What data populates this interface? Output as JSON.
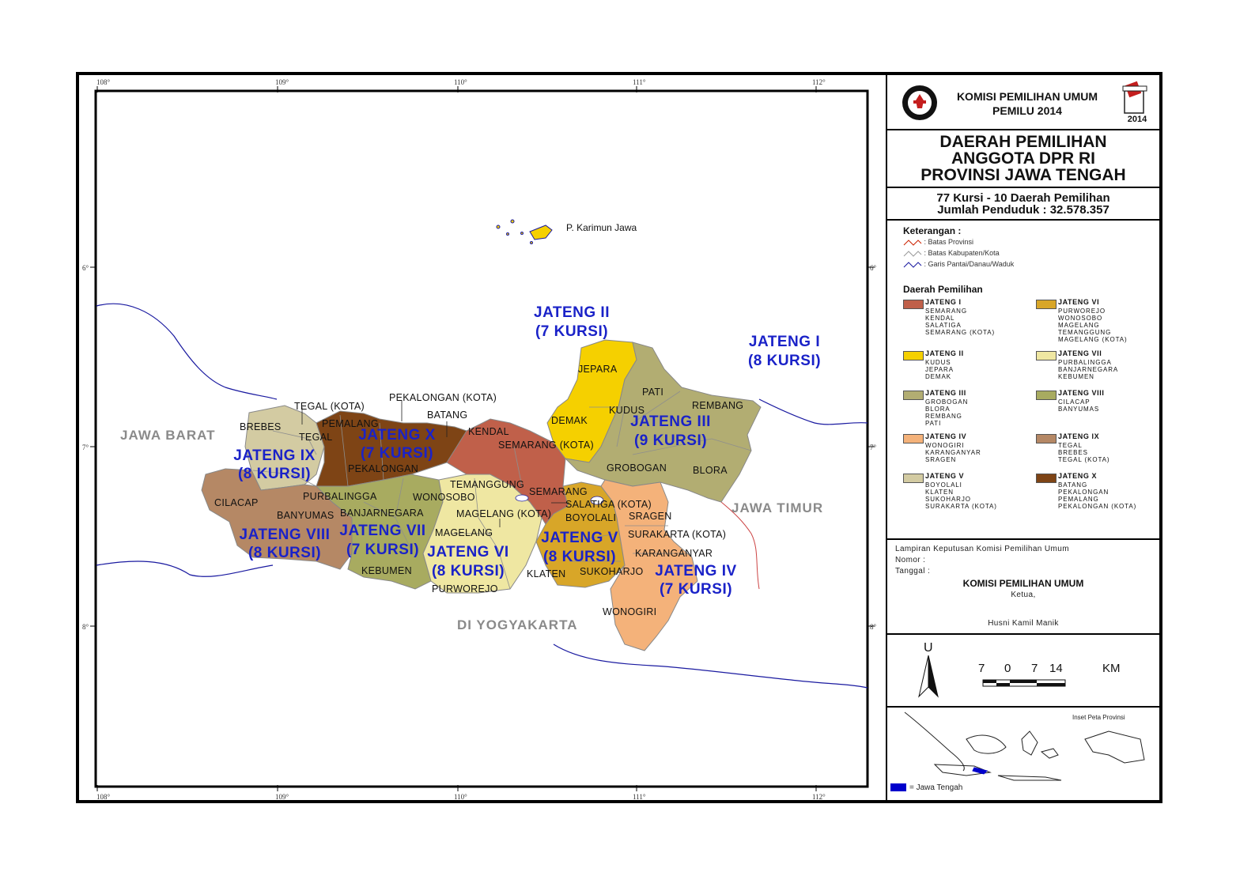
{
  "header": {
    "org": "KOMISI PEMILIHAN UMUM",
    "event": "PEMILU 2014",
    "logo_text": "KOMISI PEMILIHAN UMUM",
    "year_badge": "2014"
  },
  "title": {
    "line1": "DAERAH PEMILIHAN",
    "line2": "ANGGOTA DPR RI",
    "line3": "PROVINSI JAWA TENGAH"
  },
  "summary": {
    "line1": "77 Kursi - 10 Daerah Pemilihan",
    "line2": "Jumlah Penduduk : 32.578.357"
  },
  "keterangan": {
    "title": "Keterangan :",
    "items": [
      ": Batas Provinsi",
      ": Batas Kabupaten/Kota",
      ": Garis Pantai/Danau/Waduk"
    ],
    "colors": [
      "#cc2200",
      "#999999",
      "#1a1aa0"
    ]
  },
  "daerah_pemilihan": {
    "title": "Daerah Pemilihan",
    "items": [
      {
        "name": "JATENG I",
        "color": "#c0604a",
        "members": [
          "SEMARANG",
          "KENDAL",
          "SALATIGA",
          "SEMARANG (KOTA)"
        ]
      },
      {
        "name": "JATENG II",
        "color": "#f5d000",
        "members": [
          "KUDUS",
          "JEPARA",
          "DEMAK"
        ]
      },
      {
        "name": "JATENG III",
        "color": "#b2ad72",
        "members": [
          "GROBOGAN",
          "BLORA",
          "REMBANG",
          "PATI"
        ]
      },
      {
        "name": "JATENG IV",
        "color": "#f4b27a",
        "members": [
          "WONOGIRI",
          "KARANGANYAR",
          "SRAGEN"
        ]
      },
      {
        "name": "JATENG V",
        "color": "#d3cba2",
        "members": [
          "BOYOLALI",
          "KLATEN",
          "SUKOHARJO",
          "SURAKARTA (KOTA)"
        ]
      },
      {
        "name": "JATENG VI",
        "color": "#d8a628",
        "members": [
          "PURWOREJO",
          "WONOSOBO",
          "MAGELANG",
          "TEMANGGUNG",
          "MAGELANG (KOTA)"
        ]
      },
      {
        "name": "JATENG VII",
        "color": "#efe7a2",
        "members": [
          "PURBALINGGA",
          "BANJARNEGARA",
          "KEBUMEN"
        ]
      },
      {
        "name": "JATENG VIII",
        "color": "#a8ab60",
        "members": [
          "CILACAP",
          "BANYUMAS"
        ]
      },
      {
        "name": "JATENG IX",
        "color": "#b58865",
        "members": [
          "TEGAL",
          "BREBES",
          "TEGAL (KOTA)"
        ]
      },
      {
        "name": "JATENG X",
        "color": "#7e4415",
        "members": [
          "BATANG",
          "PEKALONGAN",
          "PEMALANG",
          "PEKALONGAN (KOTA)"
        ]
      }
    ]
  },
  "approval": {
    "lampiran": "Lampiran Keputusan Komisi Pemilihan Umum",
    "nomor": "Nomor     :",
    "tanggal": "Tanggal :",
    "org": "KOMISI PEMILIHAN UMUM",
    "role": "Ketua,",
    "name": "Husni Kamil Manik"
  },
  "scale": {
    "north": "U",
    "ticks": [
      "7",
      "0",
      "7",
      "14"
    ],
    "unit": "KM"
  },
  "inset": {
    "label": "Inset Peta Provinsi",
    "legend": "= Jawa Tengah",
    "highlight_color": "#0000cc"
  },
  "map": {
    "lon_ticks": [
      "108°",
      "109°",
      "110°",
      "111°",
      "112°"
    ],
    "lat_ticks": [
      "6°",
      "7°",
      "8°"
    ],
    "region_labels": {
      "jawa_barat": "JAWA BARAT",
      "jawa_timur": "JAWA TIMUR",
      "di_yogyakarta": "DI YOGYAKARTA",
      "karimun": "P. Karimun Jawa"
    },
    "dapil_labels": [
      {
        "line1": "JATENG I",
        "line2": "(8 KURSI)"
      },
      {
        "line1": "JATENG II",
        "line2": "(7 KURSI)"
      },
      {
        "line1": "JATENG III",
        "line2": "(9 KURSI)"
      },
      {
        "line1": "JATENG IV",
        "line2": "(7 KURSI)"
      },
      {
        "line1": "JATENG V",
        "line2": "(8 KURSI)"
      },
      {
        "line1": "JATENG VI",
        "line2": "(8 KURSI)"
      },
      {
        "line1": "JATENG VII",
        "line2": "(7 KURSI)"
      },
      {
        "line1": "JATENG VIII",
        "line2": "(8 KURSI)"
      },
      {
        "line1": "JATENG IX",
        "line2": "(8 KURSI)"
      },
      {
        "line1": "JATENG X",
        "line2": "(7 KURSI)"
      }
    ],
    "kabupaten": [
      "TEGAL (KOTA)",
      "PEKALONGAN (KOTA)",
      "BREBES",
      "PEMALANG",
      "BATANG",
      "TEGAL",
      "KENDAL",
      "SEMARANG (KOTA)",
      "PEKALONGAN",
      "JEPARA",
      "PATI",
      "REMBANG",
      "KUDUS",
      "DEMAK",
      "GROBOGAN",
      "BLORA",
      "TEMANGGUNG",
      "SEMARANG",
      "SALATIGA (KOTA)",
      "CILACAP",
      "BANYUMAS",
      "PURBALINGGA",
      "BANJARNEGARA",
      "WONOSOBO",
      "MAGELANG (KOTA)",
      "BOYOLALI",
      "SRAGEN",
      "MAGELANG",
      "SURAKARTA (KOTA)",
      "KARANGANYAR",
      "KEBUMEN",
      "KLATEN",
      "SUKOHARJO",
      "PURWOREJO",
      "WONOGIRI"
    ]
  }
}
